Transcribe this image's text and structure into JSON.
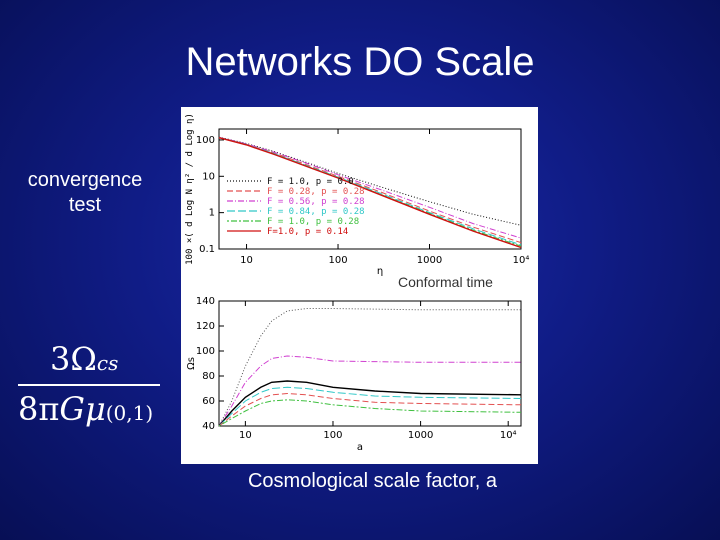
{
  "slide": {
    "title": "Networks DO Scale",
    "side_label_line1": "convergence",
    "side_label_line2": "test",
    "formula": {
      "numerator": "3Ω",
      "numerator_sub": "cs",
      "denominator_prefix": "8π",
      "denominator_symbol": "Gμ",
      "denominator_sub": "(0,1)"
    },
    "bottom_caption": "Cosmological scale factor, a",
    "colors": {
      "background": "#101c86",
      "text": "#ffffff"
    }
  },
  "chart_data": [
    {
      "type": "line",
      "ylabel": "100 ×( d Log N η² / d Log η)",
      "xlabel": "η",
      "caption": "Conformal time",
      "xscale": "log",
      "yscale": "log",
      "xlim": [
        5,
        10000
      ],
      "ylim": [
        0.1,
        200
      ],
      "xticks": [
        "10",
        "100",
        "1000",
        "10⁴"
      ],
      "yticks": [
        "0.1",
        "1",
        "10",
        "100"
      ],
      "legend_position": "center-left",
      "series": [
        {
          "name": "F = 1.0, p = 0.0",
          "color": "#111111",
          "dash": "1,2",
          "x": [
            5,
            10,
            20,
            50,
            100,
            300,
            1000,
            3000,
            10000
          ],
          "y": [
            120,
            80,
            48,
            22,
            12,
            5,
            2.0,
            0.9,
            0.45
          ]
        },
        {
          "name": "F = 0.28, p = 0.28",
          "color": "#e35050",
          "dash": "6,3",
          "x": [
            5,
            10,
            20,
            50,
            100,
            300,
            1000,
            3000,
            10000
          ],
          "y": [
            118,
            76,
            44,
            19,
            10,
            3.6,
            1.1,
            0.4,
            0.15
          ]
        },
        {
          "name": "F = 0.56, p = 0.28",
          "color": "#d040d0",
          "dash": "6,2,1,2",
          "x": [
            5,
            10,
            20,
            50,
            100,
            300,
            1000,
            3000,
            10000
          ],
          "y": [
            118,
            78,
            46,
            21,
            11,
            4.2,
            1.4,
            0.5,
            0.2
          ]
        },
        {
          "name": "F = 0.84, p = 0.28",
          "color": "#30c8c8",
          "dash": "8,3",
          "x": [
            5,
            10,
            20,
            50,
            100,
            300,
            1000,
            3000,
            10000
          ],
          "y": [
            117,
            75,
            42,
            18,
            9.5,
            3.3,
            1.0,
            0.36,
            0.13
          ]
        },
        {
          "name": "F = 1.0, p = 0.28",
          "color": "#40c040",
          "dash": "2,2,6,2",
          "x": [
            5,
            10,
            20,
            50,
            100,
            300,
            1000,
            3000,
            10000
          ],
          "y": [
            116,
            74,
            41,
            17.5,
            9.2,
            3.1,
            0.95,
            0.33,
            0.12
          ]
        },
        {
          "name": "F=1.0, p = 0.14",
          "color": "#d01010",
          "dash": "",
          "x": [
            5,
            10,
            20,
            50,
            100,
            300,
            1000,
            3000,
            10000
          ],
          "y": [
            115,
            73,
            40,
            17,
            9.0,
            3.0,
            0.9,
            0.31,
            0.11
          ]
        }
      ]
    },
    {
      "type": "line",
      "ylabel": "Ωs",
      "xlabel": "a",
      "xscale": "log",
      "xlim": [
        5,
        14000
      ],
      "ylim": [
        40,
        140
      ],
      "xticks": [
        "10",
        "100",
        "1000",
        "10⁴"
      ],
      "yticks": [
        "40",
        "60",
        "80",
        "100",
        "120",
        "140"
      ],
      "series": [
        {
          "name": "",
          "color": "#555555",
          "dash": "1,2",
          "x": [
            5,
            7,
            10,
            15,
            20,
            30,
            50,
            100,
            1000,
            14000
          ],
          "y": [
            40,
            60,
            88,
            112,
            124,
            132,
            134,
            134,
            133,
            133
          ]
        },
        {
          "name": "",
          "color": "#d040d0",
          "dash": "6,2,1,2",
          "x": [
            5,
            7,
            10,
            15,
            20,
            30,
            50,
            100,
            1000,
            14000
          ],
          "y": [
            40,
            56,
            75,
            88,
            94,
            96,
            95,
            92,
            91,
            91
          ]
        },
        {
          "name": "",
          "color": "#000000",
          "dash": "",
          "x": [
            5,
            7,
            10,
            15,
            20,
            30,
            50,
            100,
            300,
            1000,
            14000
          ],
          "y": [
            40,
            52,
            63,
            71,
            75,
            76,
            75,
            71,
            68,
            66,
            65
          ]
        },
        {
          "name": "",
          "color": "#30c8c8",
          "dash": "8,3",
          "x": [
            5,
            7,
            10,
            15,
            20,
            30,
            50,
            100,
            300,
            1000,
            14000
          ],
          "y": [
            40,
            50,
            60,
            67,
            70,
            71,
            70,
            67,
            64,
            63,
            62
          ]
        },
        {
          "name": "",
          "color": "#e35050",
          "dash": "6,3",
          "x": [
            5,
            7,
            10,
            15,
            20,
            30,
            50,
            100,
            300,
            1000,
            14000
          ],
          "y": [
            40,
            48,
            56,
            62,
            65,
            66,
            65,
            62,
            59,
            58,
            57
          ]
        },
        {
          "name": "",
          "color": "#40c040",
          "dash": "2,2,6,2",
          "x": [
            5,
            7,
            10,
            15,
            20,
            30,
            50,
            100,
            300,
            1000,
            14000
          ],
          "y": [
            40,
            46,
            52,
            58,
            60,
            61,
            60,
            57,
            54,
            52,
            51
          ]
        }
      ]
    }
  ]
}
